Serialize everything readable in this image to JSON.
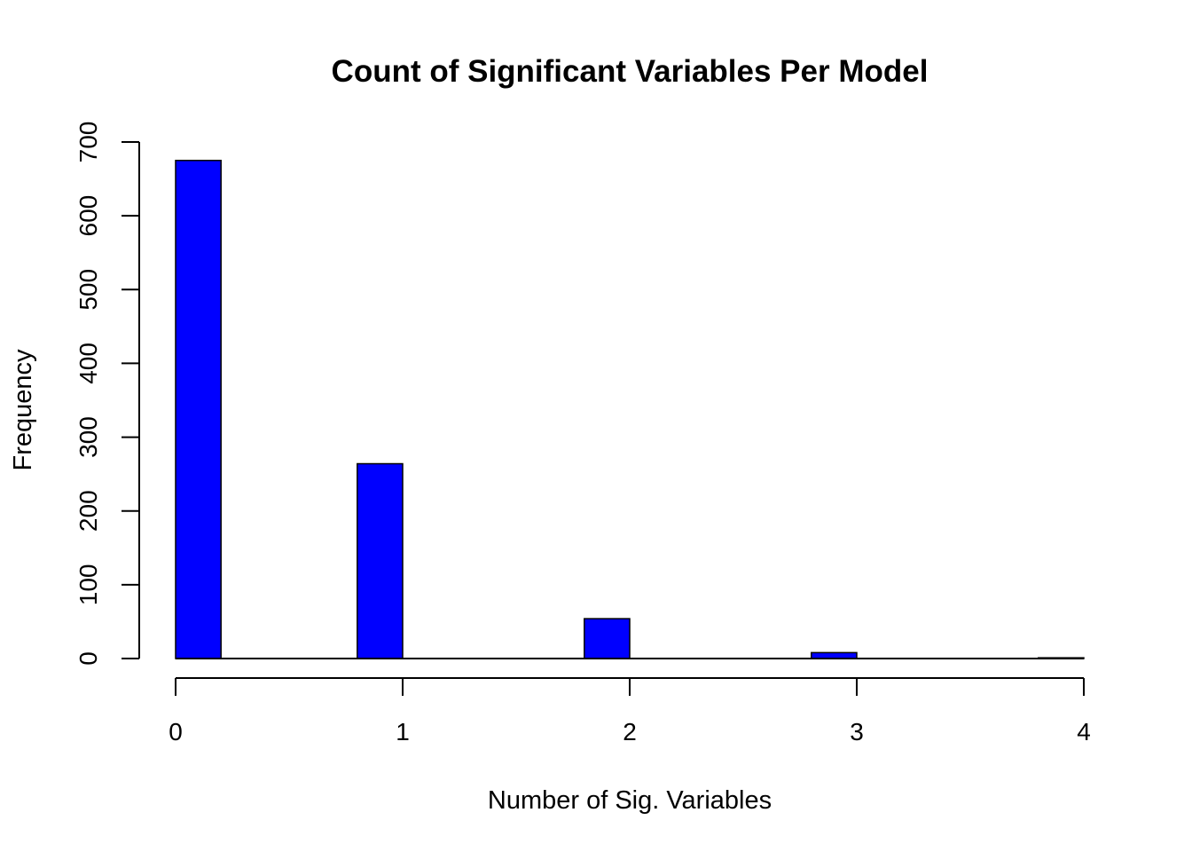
{
  "chart_data": {
    "type": "bar",
    "title": "Count of Significant Variables Per Model",
    "xlabel": "Number of Sig. Variables",
    "ylabel": "Frequency",
    "bins": [
      {
        "x0": 0.0,
        "x1": 0.2,
        "count": 675
      },
      {
        "x0": 0.2,
        "x1": 0.4,
        "count": 0
      },
      {
        "x0": 0.4,
        "x1": 0.6,
        "count": 0
      },
      {
        "x0": 0.6,
        "x1": 0.8,
        "count": 0
      },
      {
        "x0": 0.8,
        "x1": 1.0,
        "count": 264
      },
      {
        "x0": 1.0,
        "x1": 1.2,
        "count": 0
      },
      {
        "x0": 1.2,
        "x1": 1.4,
        "count": 0
      },
      {
        "x0": 1.4,
        "x1": 1.6,
        "count": 0
      },
      {
        "x0": 1.6,
        "x1": 1.8,
        "count": 0
      },
      {
        "x0": 1.8,
        "x1": 2.0,
        "count": 54
      },
      {
        "x0": 2.0,
        "x1": 2.2,
        "count": 0
      },
      {
        "x0": 2.2,
        "x1": 2.4,
        "count": 0
      },
      {
        "x0": 2.4,
        "x1": 2.6,
        "count": 0
      },
      {
        "x0": 2.6,
        "x1": 2.8,
        "count": 0
      },
      {
        "x0": 2.8,
        "x1": 3.0,
        "count": 8
      },
      {
        "x0": 3.0,
        "x1": 3.2,
        "count": 0
      },
      {
        "x0": 3.2,
        "x1": 3.4,
        "count": 0
      },
      {
        "x0": 3.4,
        "x1": 3.6,
        "count": 0
      },
      {
        "x0": 3.6,
        "x1": 3.8,
        "count": 0
      },
      {
        "x0": 3.8,
        "x1": 4.0,
        "count": 1
      }
    ],
    "xlim": [
      0,
      4
    ],
    "ylim": [
      0,
      700
    ],
    "xticks": [
      0,
      1,
      2,
      3,
      4
    ],
    "yticks": [
      0,
      100,
      200,
      300,
      400,
      500,
      600,
      700
    ],
    "bar_color": "#0000ff",
    "grid": false
  }
}
